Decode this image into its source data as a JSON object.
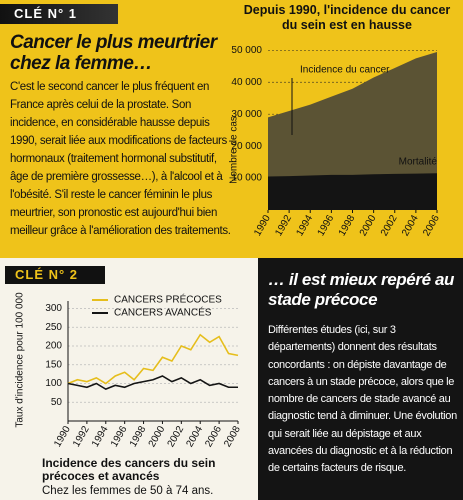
{
  "blocks": {
    "key1": "CLÉ N° 1",
    "heading1": "Cancer le plus meurtrier chez la femme…",
    "body1": "C'est le second cancer le plus fréquent en France après celui de la prostate. Son incidence, en considérable hausse depuis 1990, serait liée aux modifications de facteurs hormonaux (traitement hormonal substitutif, âge de première grossesse…), à l'alcool et à l'obésité. S'il reste le cancer féminin le plus meurtrier, son pronostic est aujourd'hui bien meilleur grâce à l'amélioration des traitements.",
    "key2": "CLÉ N° 2",
    "heading2": "… il est mieux repéré au stade précoce",
    "body2": "Différentes études (ici, sur 3 départements) donnent des résultats concordants : on dépiste davantage de cancers à un stade précoce, alors que le nombre de cancers de stade avancé au diagnostic tend à diminuer. Une évolution qui serait liée au dépistage et aux avancées du diagnostic et à la réduction de certains facteurs de risque."
  },
  "chart_data": [
    {
      "type": "area",
      "title": "Depuis 1990, l'incidence du cancer du sein est en hausse",
      "y_label": "Nombre de cas",
      "x": [
        1990,
        1992,
        1994,
        1996,
        1998,
        2000,
        2002,
        2004,
        2006
      ],
      "xlim": [
        1990,
        2006
      ],
      "xticks": [
        1990,
        1992,
        1994,
        1996,
        1998,
        2000,
        2002,
        2004,
        2006
      ],
      "ylim": [
        0,
        52000
      ],
      "yticks": [
        {
          "value": 10000,
          "label": "10 000"
        },
        {
          "value": 20000,
          "label": "20 000"
        },
        {
          "value": 30000,
          "label": "30 000"
        },
        {
          "value": 40000,
          "label": "40 000"
        },
        {
          "value": 50000,
          "label": "50 000"
        }
      ],
      "grid": true,
      "series": [
        {
          "name": "Incidence du cancer",
          "color": "#5b5334",
          "values": [
            29000,
            31000,
            33000,
            35500,
            38000,
            41500,
            44500,
            47500,
            49500
          ]
        },
        {
          "name": "Mortalité",
          "color": "#141414",
          "values": [
            10500,
            10600,
            10800,
            11000,
            11000,
            11200,
            11300,
            11400,
            11500
          ]
        }
      ]
    },
    {
      "type": "line",
      "title": "Incidence des cancers du sein précoces et avancés",
      "subtitle": "Chez les femmes de 50 à 74 ans.",
      "y_label": "Taux d'incidence pour 100 000",
      "x": [
        1990,
        1991,
        1992,
        1993,
        1994,
        1995,
        1996,
        1997,
        1998,
        1999,
        2000,
        2001,
        2002,
        2003,
        2004,
        2005,
        2006,
        2007,
        2008
      ],
      "xlim": [
        1990,
        2008
      ],
      "xticks": [
        1990,
        1992,
        1994,
        1996,
        1998,
        2000,
        2002,
        2004,
        2006,
        2008
      ],
      "ylim": [
        0,
        320
      ],
      "yticks": [
        50,
        100,
        150,
        200,
        250,
        300
      ],
      "grid": true,
      "legend": "top-left",
      "series": [
        {
          "name": "CANCERS PRÉCOCES",
          "color": "#e6be1c",
          "values": [
            100,
            110,
            105,
            115,
            100,
            120,
            130,
            110,
            140,
            135,
            170,
            160,
            200,
            190,
            230,
            210,
            225,
            180,
            175
          ]
        },
        {
          "name": "CANCERS AVANCÉS",
          "color": "#141414",
          "values": [
            100,
            95,
            90,
            100,
            85,
            95,
            90,
            100,
            105,
            110,
            120,
            105,
            115,
            100,
            110,
            95,
            100,
            90,
            90
          ]
        }
      ]
    }
  ]
}
